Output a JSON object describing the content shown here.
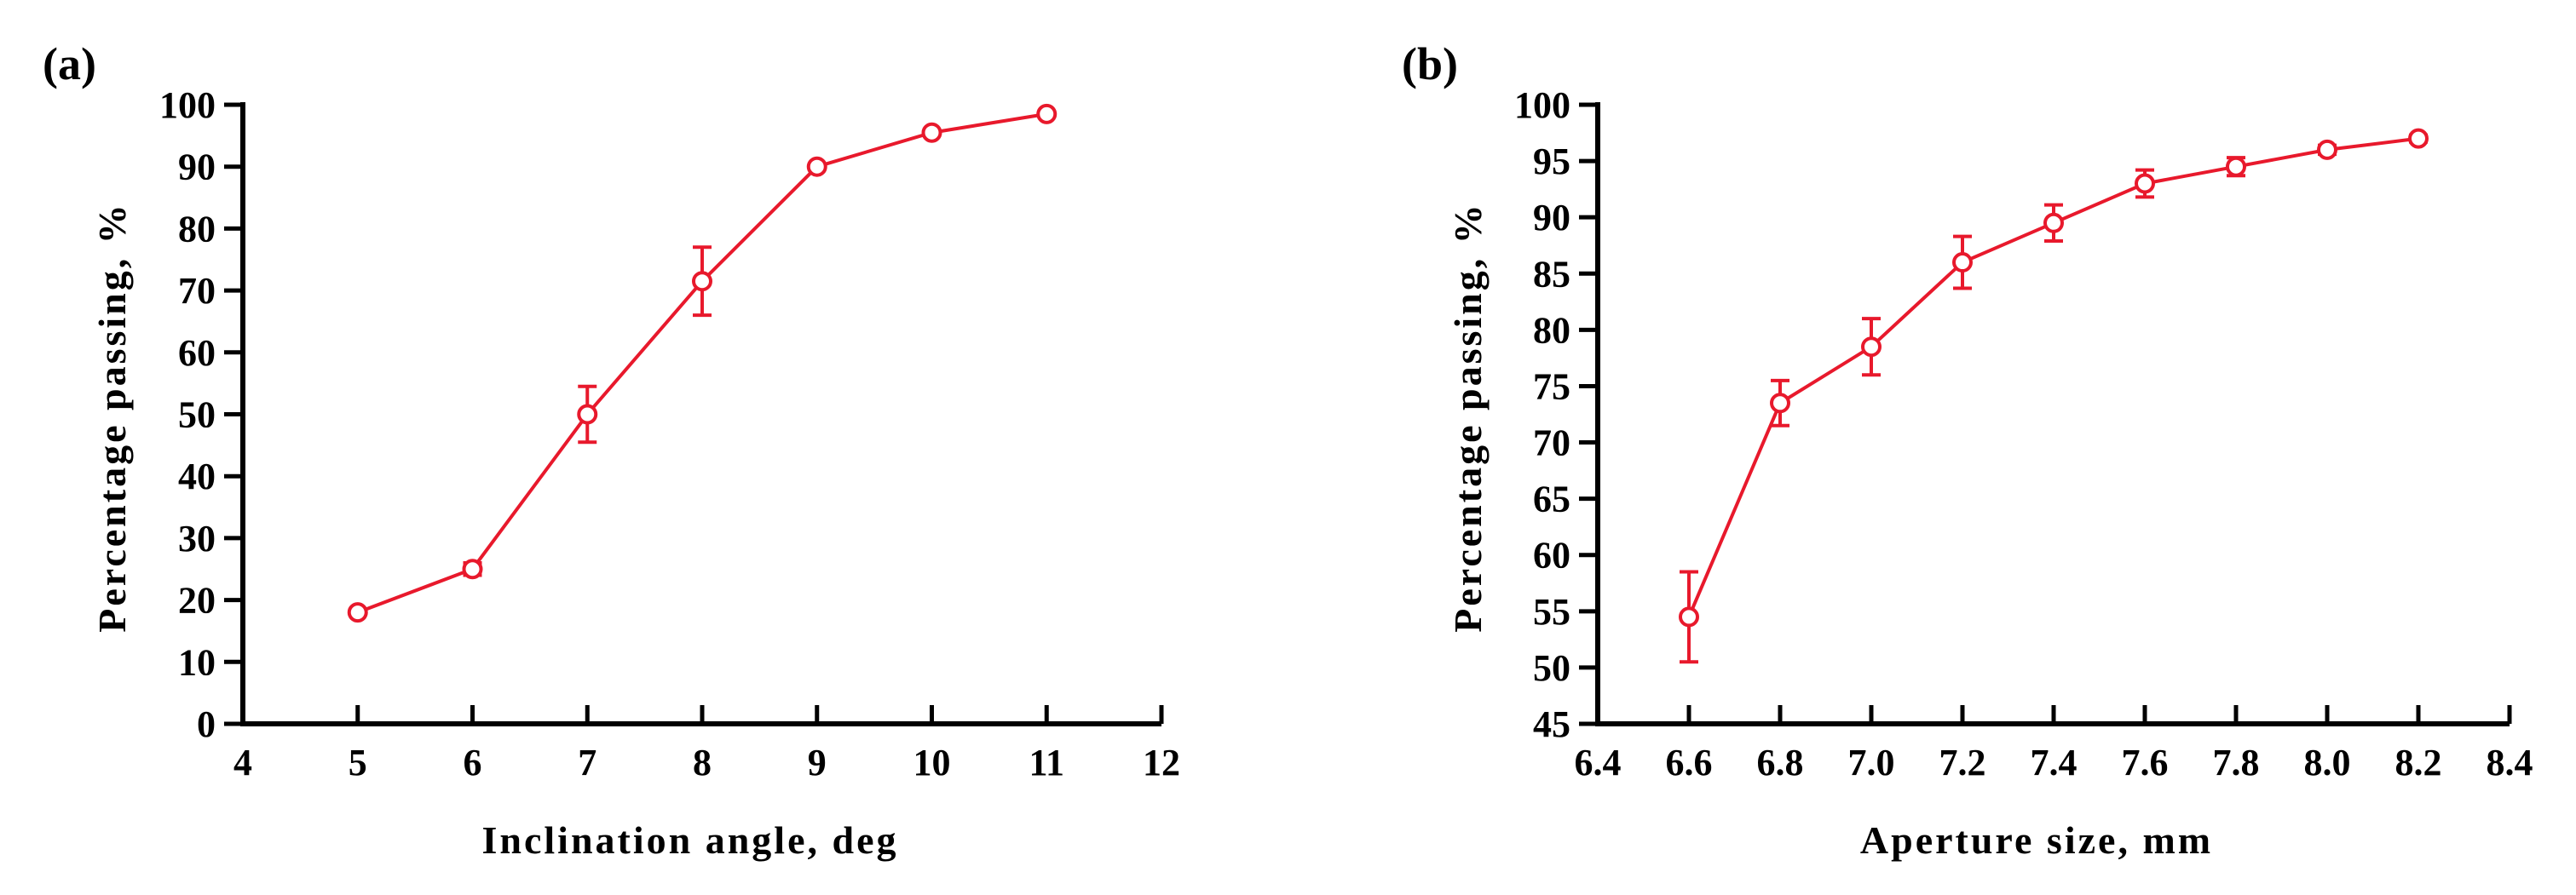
{
  "series_color": "#e8192c",
  "chart_data": [
    {
      "type": "line",
      "panel_label": "(a)",
      "title": "",
      "xlabel": "Inclination angle, deg",
      "ylabel": "Percentage passing, %",
      "xlim": [
        4,
        12
      ],
      "ylim": [
        0,
        100
      ],
      "xticks": [
        "4",
        "5",
        "6",
        "7",
        "8",
        "9",
        "10",
        "11",
        "12"
      ],
      "yticks": [
        "0",
        "10",
        "20",
        "30",
        "40",
        "50",
        "60",
        "70",
        "80",
        "90",
        "100"
      ],
      "grid": false,
      "series": [
        {
          "name": "Percentage passing",
          "x": [
            5,
            6,
            7,
            8,
            9,
            10,
            11
          ],
          "y": [
            18,
            25,
            50,
            71.5,
            90,
            95.5,
            98.5
          ],
          "err": [
            0,
            1,
            4.5,
            5.5,
            0,
            0,
            0
          ]
        }
      ]
    },
    {
      "type": "line",
      "panel_label": "(b)",
      "title": "",
      "xlabel": "Aperture size, mm",
      "ylabel": "Percentage passing, %",
      "xlim": [
        6.4,
        8.4
      ],
      "ylim": [
        45,
        100
      ],
      "xticks": [
        "6.4",
        "6.6",
        "6.8",
        "7.0",
        "7.2",
        "7.4",
        "7.6",
        "7.8",
        "8.0",
        "8.2",
        "8.4"
      ],
      "yticks": [
        "45",
        "50",
        "55",
        "60",
        "65",
        "70",
        "75",
        "80",
        "85",
        "90",
        "95",
        "100"
      ],
      "grid": false,
      "series": [
        {
          "name": "Percentage passing",
          "x": [
            6.6,
            6.8,
            7.0,
            7.2,
            7.4,
            7.6,
            7.8,
            8.0,
            8.2
          ],
          "y": [
            54.5,
            73.5,
            78.5,
            86,
            89.5,
            93,
            94.5,
            96,
            97
          ],
          "err": [
            4,
            2,
            2.5,
            2.3,
            1.6,
            1.2,
            0.8,
            0.4,
            0.3
          ]
        }
      ]
    }
  ]
}
